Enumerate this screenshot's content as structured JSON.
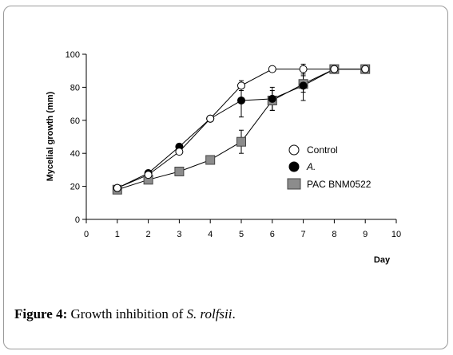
{
  "caption": {
    "label": "Figure 4:",
    "text_before": " Growth inhibition of ",
    "species": "S. rolfsii",
    "text_after": "."
  },
  "chart_data": {
    "type": "line",
    "xlabel": "Day",
    "ylabel": "Mycelial growth (mm)",
    "xlim": [
      0,
      10
    ],
    "ylim": [
      0,
      100
    ],
    "x_ticks": [
      0,
      1,
      2,
      3,
      4,
      5,
      6,
      7,
      8,
      9,
      10
    ],
    "y_ticks": [
      0,
      20,
      40,
      60,
      80,
      100
    ],
    "grid": false,
    "legend_position": "right",
    "series": [
      {
        "name": "Control",
        "marker": "open-circle",
        "color": "#ffffff",
        "x": [
          1,
          2,
          3,
          4,
          5,
          6,
          7,
          8,
          9
        ],
        "y": [
          19,
          27,
          41,
          61,
          81,
          91,
          91,
          91,
          91
        ],
        "error": [
          0,
          0,
          0,
          0,
          3,
          0,
          3,
          0,
          0
        ]
      },
      {
        "name": "A.",
        "name_style": "italic",
        "marker": "filled-circle",
        "color": "#000000",
        "x": [
          1,
          2,
          3,
          4,
          5,
          6,
          7,
          8,
          9
        ],
        "y": [
          19,
          28,
          44,
          61,
          72,
          73,
          81,
          91,
          91
        ],
        "error": [
          0,
          0,
          0,
          0,
          10,
          7,
          9,
          0,
          0
        ]
      },
      {
        "name": "PAC BNM0522",
        "marker": "square",
        "color": "#8c8c8c",
        "x": [
          1,
          2,
          3,
          4,
          5,
          6,
          7,
          8,
          9
        ],
        "y": [
          18,
          24,
          29,
          36,
          47,
          72,
          82,
          91,
          91
        ],
        "error": [
          0,
          0,
          0,
          0,
          7,
          6,
          5,
          0,
          0
        ]
      }
    ]
  }
}
